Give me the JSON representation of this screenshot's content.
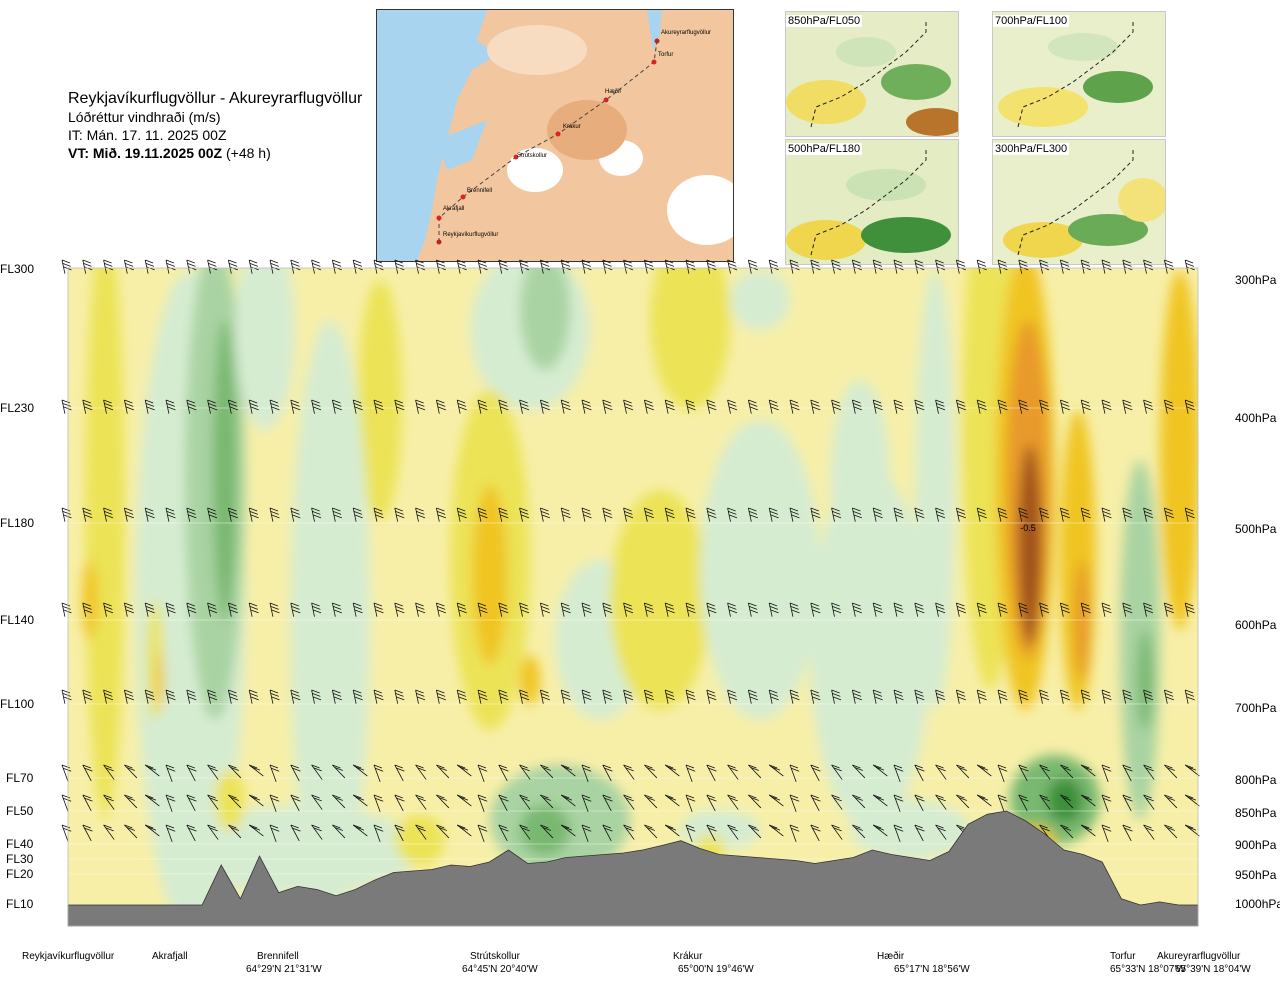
{
  "title": {
    "route": "Reykjavíkurflugvöllur - Akureyrarflugvöllur",
    "field": "Lóðréttur vindhraði (m/s)",
    "it": "IT: Mán. 17. 11. 2025 00Z",
    "vt_bold": "VT: Mið. 19.11.2025 00Z",
    "vt_suffix": " (+48 h)"
  },
  "flight_levels": [
    "FL300",
    "FL230",
    "FL180",
    "FL140",
    "FL100",
    "FL70",
    "FL50",
    "FL40",
    "FL30",
    "FL20",
    "FL10"
  ],
  "pressure_levels": [
    "300hPa",
    "400hPa",
    "500hPa",
    "600hPa",
    "700hPa",
    "800hPa",
    "850hPa",
    "900hPa",
    "950hPa",
    "1000hPa"
  ],
  "stations": [
    {
      "name": "Reykjavíkurflugvöllur",
      "coord": ""
    },
    {
      "name": "Akrafjall",
      "coord": ""
    },
    {
      "name": "Brennifell",
      "coord": "64°29'N 21°31'W"
    },
    {
      "name": "Strútskollur",
      "coord": "64°45'N 20°40'W"
    },
    {
      "name": "Krákur",
      "coord": "65°00'N 19°46'W"
    },
    {
      "name": "Hæðir",
      "coord": "65°17'N 18°56'W"
    },
    {
      "name": "Torfur",
      "coord": "65°33'N 18°07'W"
    },
    {
      "name": "Akureyrarflugvöllur",
      "coord": "65°39'N 18°04'W"
    }
  ],
  "thumbnails": [
    "850hPa/FL050",
    "700hPa/FL100",
    "500hPa/FL180",
    "300hPa/FL300"
  ],
  "map_labels": [
    "Akureyrarflugvöllur",
    "Torfur",
    "Hæðir",
    "Krákur",
    "Strútskollur",
    "Brennifell",
    "Akrafjall",
    "Reykjavíkurflugvöllur"
  ],
  "chart_data": {
    "type": "heatmap",
    "title": "Lóðréttur vindhraði (m/s)",
    "annotation": "-0.5",
    "colors": {
      "up_strong": "#3d8f3a",
      "up_mid": "#78b870",
      "up_weak": "#a9d3a2",
      "up_faint": "#d6ecd1",
      "neutral": "#fbfbe6",
      "down_faint": "#f7efa8",
      "down_weak": "#ece356",
      "down_mid": "#f0c523",
      "down_strong": "#e89a2a",
      "down_max": "#a0521e",
      "terrain": "#7a7a7a"
    },
    "terrain_profile_fl": [
      1,
      1,
      1,
      1,
      1,
      1,
      1,
      1,
      2.6,
      1.2,
      3.2,
      1.4,
      1.6,
      1.5,
      1.3,
      1.5,
      1.8,
      2.1,
      2.2,
      2.3,
      2.6,
      2.5,
      2.8,
      3.6,
      2.7,
      2.8,
      3.1,
      3.2,
      3.3,
      3.4,
      3.6,
      3.9,
      4.1,
      3.7,
      3.3,
      3.2,
      3.1,
      3.0,
      2.9,
      2.7,
      2.9,
      3.1,
      3.6,
      3.3,
      3.1,
      2.9,
      3.5,
      4.6,
      4.9,
      5.0,
      4.7,
      4.3,
      3.6,
      3.3,
      2.8,
      1.2,
      1,
      1.1,
      1,
      1
    ]
  }
}
